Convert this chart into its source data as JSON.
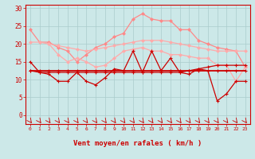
{
  "x": [
    0,
    1,
    2,
    3,
    4,
    5,
    6,
    7,
    8,
    9,
    10,
    11,
    12,
    13,
    14,
    15,
    16,
    17,
    18,
    19,
    20,
    21,
    22,
    23
  ],
  "line_rafales_max": [
    24,
    20.5,
    20.5,
    19,
    18,
    15,
    17,
    19,
    20,
    22,
    23,
    27,
    28.5,
    27,
    26.5,
    26.5,
    24,
    24,
    21,
    20,
    19,
    18.5,
    18,
    13.5
  ],
  "line_rafales_mean": [
    20.5,
    20.5,
    20,
    19.5,
    19,
    18.5,
    18,
    18.5,
    19,
    19.5,
    20,
    20.5,
    21,
    21,
    21,
    20.5,
    20,
    19.5,
    19,
    18.5,
    18,
    18,
    18,
    18
  ],
  "line_vent_max": [
    null,
    null,
    20,
    17,
    15,
    16,
    15,
    13.5,
    14,
    16,
    18,
    18.5,
    19,
    18,
    18,
    17,
    17,
    16.5,
    16,
    16,
    14,
    14,
    9.5,
    13.5
  ],
  "line_vent_inst": [
    15,
    12,
    11.5,
    9.5,
    9.5,
    12,
    9.5,
    8.5,
    10.5,
    13,
    12.5,
    18,
    12,
    18,
    12.5,
    16,
    12,
    11.5,
    13,
    12.5,
    4,
    6,
    9.5,
    9.5
  ],
  "line_vent_moy": [
    12.5,
    12.5,
    12.5,
    12.5,
    12.5,
    12.5,
    12.5,
    12.5,
    12.5,
    12.5,
    12.5,
    12.5,
    12.5,
    12.5,
    12.5,
    12.5,
    12.5,
    12.5,
    12.5,
    12.5,
    12.5,
    12.5,
    12.5,
    12.5
  ],
  "line_vent_min": [
    12.5,
    12,
    12,
    12,
    12,
    12,
    12,
    12,
    12,
    12,
    12,
    12,
    12,
    12,
    12,
    12,
    12,
    12.5,
    13,
    13.5,
    14,
    14,
    14,
    14
  ],
  "yticks": [
    0,
    5,
    10,
    15,
    20,
    25,
    30
  ],
  "ylim": [
    -2.5,
    31
  ],
  "xlim": [
    -0.5,
    23.5
  ],
  "bg_color": "#cce8e8",
  "grid_color": "#aacccc",
  "color_light_pink": "#ff8888",
  "color_light_pink2": "#ffaaaa",
  "color_dark_red": "#cc0000",
  "color_medium_red": "#dd2222",
  "xlabel": "Vent moyen/en rafales ( km/h )",
  "xlabel_color": "#cc0000",
  "tick_color": "#cc0000",
  "arrow_color": "#cc0000"
}
